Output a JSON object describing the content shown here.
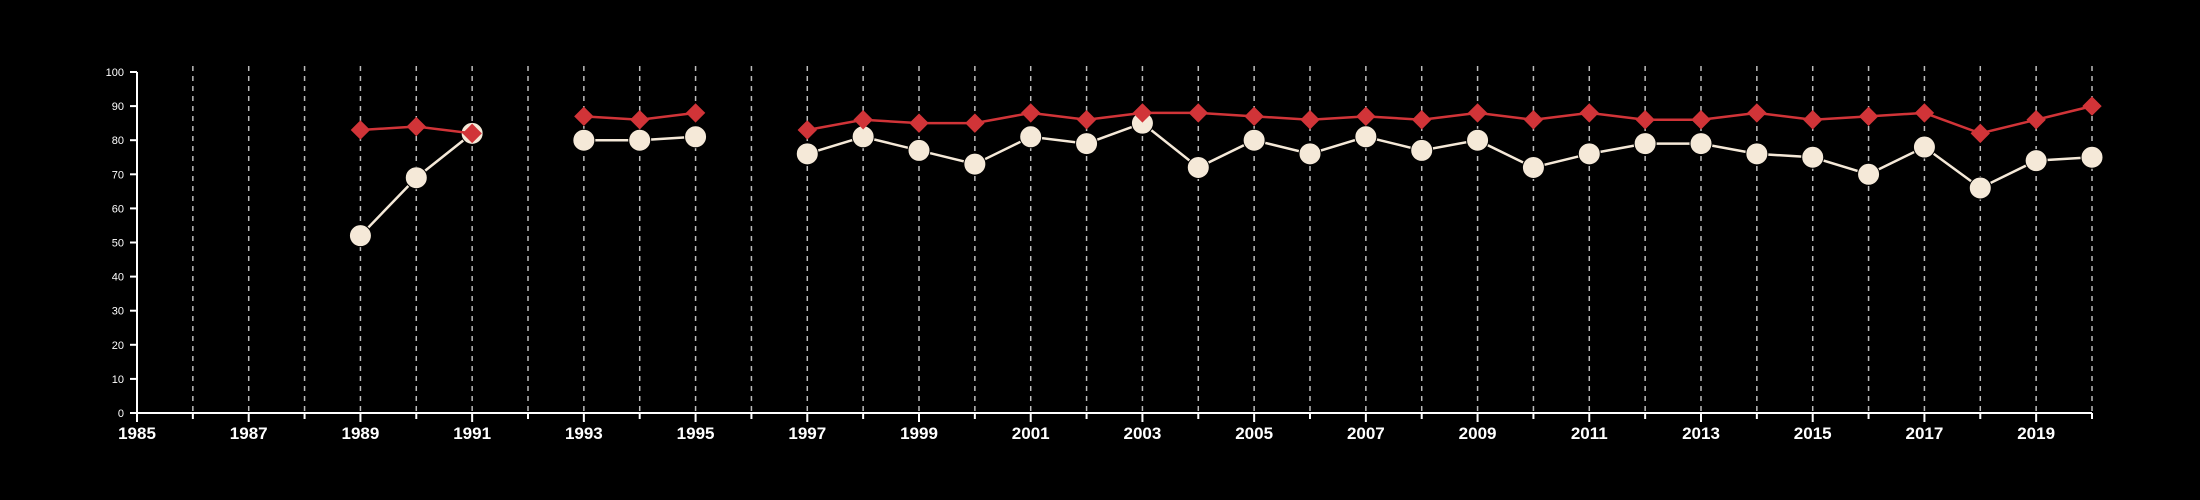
{
  "chart_data": {
    "type": "line",
    "title": "",
    "xlabel": "",
    "ylabel": "",
    "xlim": [
      1985,
      2020
    ],
    "ylim": [
      0,
      100
    ],
    "y_ticks": [
      0,
      10,
      20,
      30,
      40,
      50,
      60,
      70,
      80,
      90,
      100
    ],
    "x_ticks_labeled": [
      1985,
      1987,
      1989,
      1991,
      1993,
      1995,
      1997,
      1999,
      2001,
      2003,
      2005,
      2007,
      2009,
      2011,
      2013,
      2015,
      2017,
      2019
    ],
    "x_ticks_minor": [
      1986,
      1988,
      1990,
      1992,
      1994,
      1996,
      1998,
      2000,
      2002,
      2004,
      2006,
      2008,
      2010,
      2012,
      2014,
      2016,
      2018,
      2020
    ],
    "vertical_gridlines": "dashed, every year",
    "legend": "none",
    "series": [
      {
        "marker": "diamond",
        "color": "#d13438",
        "points": [
          [
            1989,
            83
          ],
          [
            1990,
            84
          ],
          [
            1991,
            82
          ],
          [
            1993,
            87
          ],
          [
            1994,
            86
          ],
          [
            1995,
            88
          ],
          [
            1997,
            83
          ],
          [
            1998,
            86
          ],
          [
            1999,
            85
          ],
          [
            2000,
            85
          ],
          [
            2001,
            88
          ],
          [
            2002,
            86
          ],
          [
            2003,
            88
          ],
          [
            2004,
            88
          ],
          [
            2005,
            87
          ],
          [
            2006,
            86
          ],
          [
            2007,
            87
          ],
          [
            2008,
            86
          ],
          [
            2009,
            88
          ],
          [
            2010,
            86
          ],
          [
            2011,
            88
          ],
          [
            2012,
            86
          ],
          [
            2013,
            86
          ],
          [
            2014,
            88
          ],
          [
            2015,
            86
          ],
          [
            2016,
            87
          ],
          [
            2017,
            88
          ],
          [
            2018,
            82
          ],
          [
            2019,
            86
          ],
          [
            2020,
            90
          ]
        ]
      },
      {
        "marker": "circle",
        "color": "#f5e9d8",
        "points": [
          [
            1989,
            52
          ],
          [
            1990,
            69
          ],
          [
            1991,
            82
          ],
          [
            1993,
            80
          ],
          [
            1994,
            80
          ],
          [
            1995,
            81
          ],
          [
            1997,
            76
          ],
          [
            1998,
            81
          ],
          [
            1999,
            77
          ],
          [
            2000,
            73
          ],
          [
            2001,
            81
          ],
          [
            2002,
            79
          ],
          [
            2003,
            85
          ],
          [
            2004,
            72
          ],
          [
            2005,
            80
          ],
          [
            2006,
            76
          ],
          [
            2007,
            81
          ],
          [
            2008,
            77
          ],
          [
            2009,
            80
          ],
          [
            2010,
            72
          ],
          [
            2011,
            76
          ],
          [
            2012,
            79
          ],
          [
            2013,
            79
          ],
          [
            2014,
            76
          ],
          [
            2015,
            75
          ],
          [
            2016,
            70
          ],
          [
            2017,
            78
          ],
          [
            2018,
            66
          ],
          [
            2019,
            74
          ],
          [
            2020,
            75
          ]
        ]
      }
    ]
  }
}
